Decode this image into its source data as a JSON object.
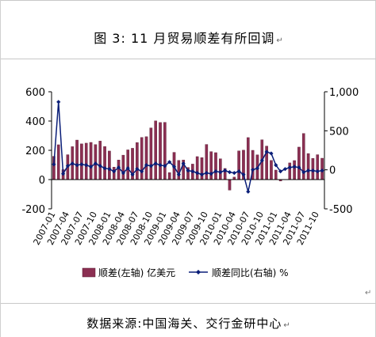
{
  "title": {
    "text": "图 3:  11 月贸易顺差有所回调",
    "mark": "↵"
  },
  "source": {
    "text": "数据来源:中国海关、交行金研中心",
    "mark": "↵"
  },
  "chart_mark": "↵",
  "colors": {
    "bar": "#8b2f52",
    "bar_edge": "#5a1d35",
    "line": "#0a1e78",
    "axis": "#000000"
  },
  "chart_data": {
    "type": "bar",
    "title": "11 月贸易顺差有所回调",
    "categories": [
      "2007-01",
      "2007-02",
      "2007-03",
      "2007-04",
      "2007-05",
      "2007-06",
      "2007-07",
      "2007-08",
      "2007-09",
      "2007-10",
      "2007-11",
      "2007-12",
      "2008-01",
      "2008-02",
      "2008-03",
      "2008-04",
      "2008-05",
      "2008-06",
      "2008-07",
      "2008-08",
      "2008-09",
      "2008-10",
      "2008-11",
      "2008-12",
      "2009-01",
      "2009-02",
      "2009-03",
      "2009-04",
      "2009-05",
      "2009-06",
      "2009-07",
      "2009-08",
      "2009-09",
      "2009-10",
      "2009-11",
      "2009-12",
      "2010-01",
      "2010-02",
      "2010-03",
      "2010-04",
      "2010-05",
      "2010-06",
      "2010-07",
      "2010-08",
      "2010-09",
      "2010-10",
      "2010-11",
      "2010-12",
      "2011-01",
      "2011-02",
      "2011-03",
      "2011-04",
      "2011-05",
      "2011-06",
      "2011-07",
      "2011-08",
      "2011-09",
      "2011-10",
      "2011-11"
    ],
    "x_tick_labels": [
      "2007-01",
      "2007-04",
      "2007-07",
      "2007-10",
      "2008-01",
      "2008-04",
      "2008-07",
      "2008-10",
      "2009-01",
      "2009-04",
      "2009-07",
      "2009-10",
      "2010-01",
      "2010-04",
      "2010-07",
      "2010-10",
      "2011-01",
      "2011-04",
      "2011-07",
      "2011-10"
    ],
    "series": [
      {
        "name": "顺差(左轴) 亿美元",
        "axis": "left",
        "type": "bar",
        "values": [
          159,
          238,
          68,
          170,
          225,
          270,
          244,
          249,
          254,
          239,
          263,
          226,
          195,
          85,
          134,
          167,
          203,
          214,
          253,
          288,
          293,
          353,
          401,
          390,
          391,
          48,
          186,
          131,
          134,
          83,
          106,
          157,
          150,
          240,
          191,
          184,
          142,
          76,
          -72,
          17,
          196,
          201,
          287,
          200,
          169,
          272,
          229,
          131,
          65,
          -10,
          1,
          114,
          130,
          222,
          315,
          178,
          145,
          170,
          146
        ]
      },
      {
        "name": "顺差同比(右轴) %",
        "axis": "right",
        "type": "line",
        "values": [
          70,
          870,
          -50,
          50,
          80,
          60,
          70,
          60,
          40,
          80,
          50,
          20,
          10,
          -20,
          30,
          -40,
          20,
          -60,
          10,
          -20,
          60,
          50,
          80,
          60,
          50,
          100,
          40,
          -60,
          80,
          -10,
          -20,
          -40,
          -60,
          -40,
          -50,
          -20,
          -30,
          -10,
          -30,
          -40,
          -20,
          -60,
          -280,
          0,
          20,
          120,
          230,
          210,
          60,
          -20,
          10,
          30,
          40,
          30,
          -30,
          -10,
          -10,
          -20,
          -10
        ]
      }
    ],
    "y_left": {
      "ticks": [
        -200,
        0,
        200,
        400,
        600
      ],
      "tick_labels": [
        "-200",
        "0",
        "200",
        "400",
        "600"
      ],
      "range": [
        -200,
        600
      ]
    },
    "y_right": {
      "ticks": [
        -500,
        0,
        500,
        1000
      ],
      "tick_labels": [
        "-500",
        "0",
        "500",
        "1,000"
      ],
      "range": [
        -500,
        1000
      ]
    },
    "legend": {
      "position": "bottom",
      "bar_label": "顺差(左轴) 亿美元",
      "line_label": "顺差同比(右轴) %"
    },
    "grid": false
  }
}
